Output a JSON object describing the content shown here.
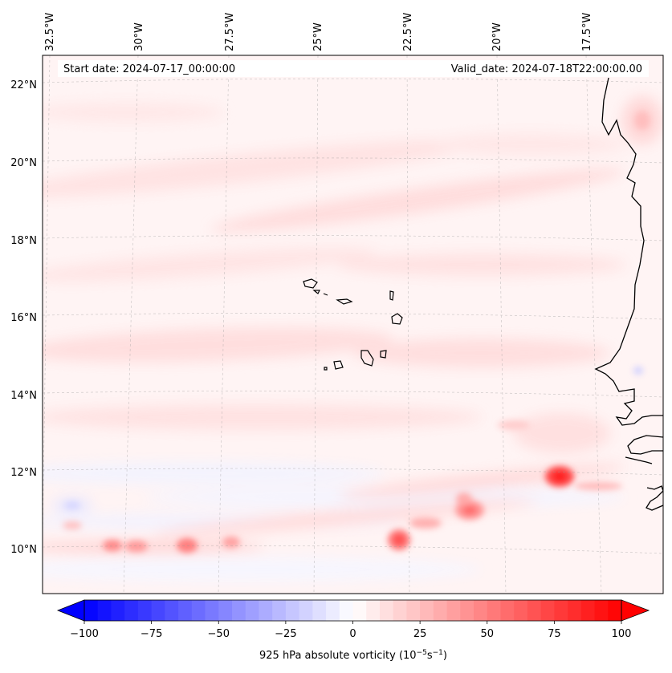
{
  "map": {
    "start_date": "Start date: 2024-07-17_00:00:00",
    "valid_date": "Valid_date: 2024-07-18T22:00:00.00",
    "lon_labels": [
      "32.5°W",
      "30°W",
      "27.5°W",
      "25°W",
      "22.5°W",
      "20°W",
      "17.5°W"
    ],
    "lat_labels": [
      "22°N",
      "20°N",
      "18°N",
      "16°N",
      "14°N",
      "12°N",
      "10°N"
    ],
    "region": "Cabo Verde islands and West African coast (Senegal)",
    "colors": {
      "positive": "#ff0000",
      "negative": "#0000ff",
      "neutral": "#ffffff",
      "coast": "#000000"
    }
  },
  "colorbar": {
    "ticks": [
      "−100",
      "−75",
      "−50",
      "−25",
      "0",
      "25",
      "50",
      "75",
      "100"
    ],
    "min": -100,
    "max": 100,
    "label_prefix": "925 hPa absolute vorticity (10",
    "label_exp1": "−5",
    "label_mid": "s",
    "label_exp2": "−1",
    "label_suffix": ")"
  }
}
